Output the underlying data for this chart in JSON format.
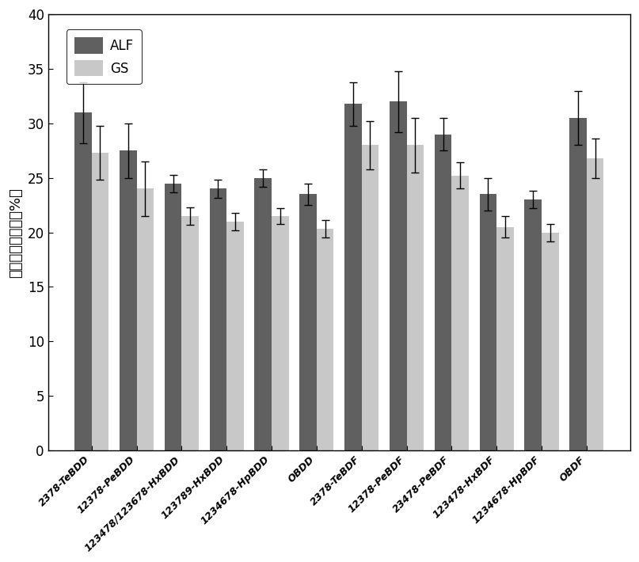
{
  "categories": [
    "2378-TeBDD",
    "12378-PeBDD",
    "123478/123678-HxBDD",
    "123789-HxBDD",
    "1234678-HpBDD",
    "OBDD",
    "2378-TeBDF",
    "12378-PeBDF",
    "23478-PeBDF",
    "123478-HxBDF",
    "1234678-HpBDF",
    "OBDF"
  ],
  "alf_values": [
    31.0,
    27.5,
    24.5,
    24.0,
    25.0,
    23.5,
    31.8,
    32.0,
    29.0,
    23.5,
    23.0,
    30.5
  ],
  "gs_values": [
    27.3,
    24.0,
    21.5,
    21.0,
    21.5,
    20.3,
    28.0,
    28.0,
    25.2,
    20.5,
    20.0,
    26.8
  ],
  "alf_errors": [
    2.8,
    2.5,
    0.8,
    0.8,
    0.8,
    1.0,
    2.0,
    2.8,
    1.5,
    1.5,
    0.8,
    2.5
  ],
  "gs_errors": [
    2.5,
    2.5,
    0.8,
    0.8,
    0.7,
    0.8,
    2.2,
    2.5,
    1.2,
    1.0,
    0.8,
    1.8
  ],
  "alf_color": "#606060",
  "gs_color": "#c8c8c8",
  "ylim": [
    0,
    40
  ],
  "yticks": [
    0,
    5,
    10,
    15,
    20,
    25,
    30,
    35,
    40
  ],
  "ylabel": "吸入生物可给性（%）",
  "legend_labels": [
    "ALF",
    "GS"
  ],
  "bar_width": 0.38,
  "figsize": [
    8.07,
    7.1
  ],
  "dpi": 100
}
